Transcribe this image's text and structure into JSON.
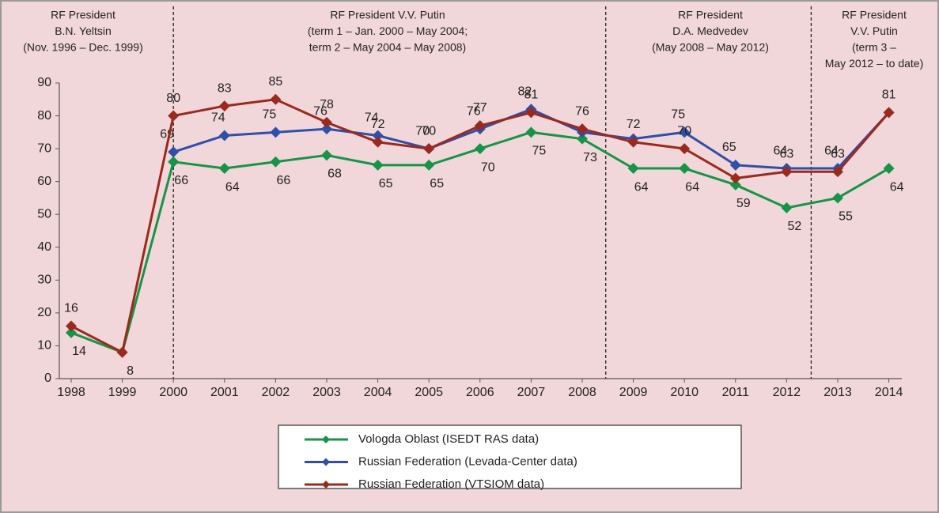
{
  "chart_data": {
    "type": "line",
    "annotations": [
      [
        "RF President",
        "B.N. Yeltsin",
        "(Nov. 1996 – Dec. 1999)"
      ],
      [
        "RF President V.V. Putin",
        "(term 1 –  Jan. 2000 – May 2004;",
        "term 2 –  May 2004 – May 2008)"
      ],
      [
        "RF President",
        "D.A. Medvedev",
        "(May 2008 – May 2012)"
      ],
      [
        "RF President",
        "V.V. Putin",
        "(term 3 –",
        "May 2012 – to date)"
      ]
    ],
    "categories": [
      "1998",
      "1999",
      "2000",
      "2001",
      "2002",
      "2003",
      "2004",
      "2005",
      "2006",
      "2007",
      "2008",
      "2009",
      "2010",
      "2011",
      "2012",
      "2013",
      "2014"
    ],
    "ylim": [
      0,
      90
    ],
    "yticks": [
      0,
      10,
      20,
      30,
      40,
      50,
      60,
      70,
      80,
      90
    ],
    "series": [
      {
        "name": "Vologda Oblast (ISEDT RAS data)",
        "color": "#169447",
        "values": [
          14,
          8,
          66,
          64,
          66,
          68,
          65,
          65,
          70,
          75,
          73,
          64,
          64,
          59,
          52,
          55,
          64
        ],
        "value_labels": [
          "14",
          "8",
          "66",
          "64",
          "66",
          "68",
          "65",
          "65",
          "70",
          "75",
          "73",
          "64",
          "64",
          "59",
          "52",
          "55",
          "64"
        ]
      },
      {
        "name": "Russian Federation (Levada-Center data)",
        "color": "#2f4fa8",
        "values": [
          null,
          null,
          69,
          74,
          75,
          76,
          74,
          70,
          76,
          82,
          75,
          73,
          75,
          65,
          64,
          64,
          81
        ],
        "value_labels": [
          null,
          null,
          "69",
          "74",
          "75",
          "76",
          "74",
          "70",
          "76",
          "82",
          null,
          null,
          "75",
          "65",
          "64",
          "64",
          null
        ]
      },
      {
        "name": "Russian Federation (VTSIOM data)",
        "color": "#9b2a1e",
        "values": [
          16,
          8,
          80,
          83,
          85,
          78,
          72,
          70,
          77,
          81,
          76,
          72,
          70,
          61,
          63,
          63,
          81
        ],
        "value_labels": [
          "16",
          null,
          "80",
          "83",
          "85",
          "78",
          "72",
          "70",
          "77",
          "81",
          "76",
          "72",
          "70",
          null,
          "63",
          "63",
          "81"
        ]
      }
    ]
  }
}
